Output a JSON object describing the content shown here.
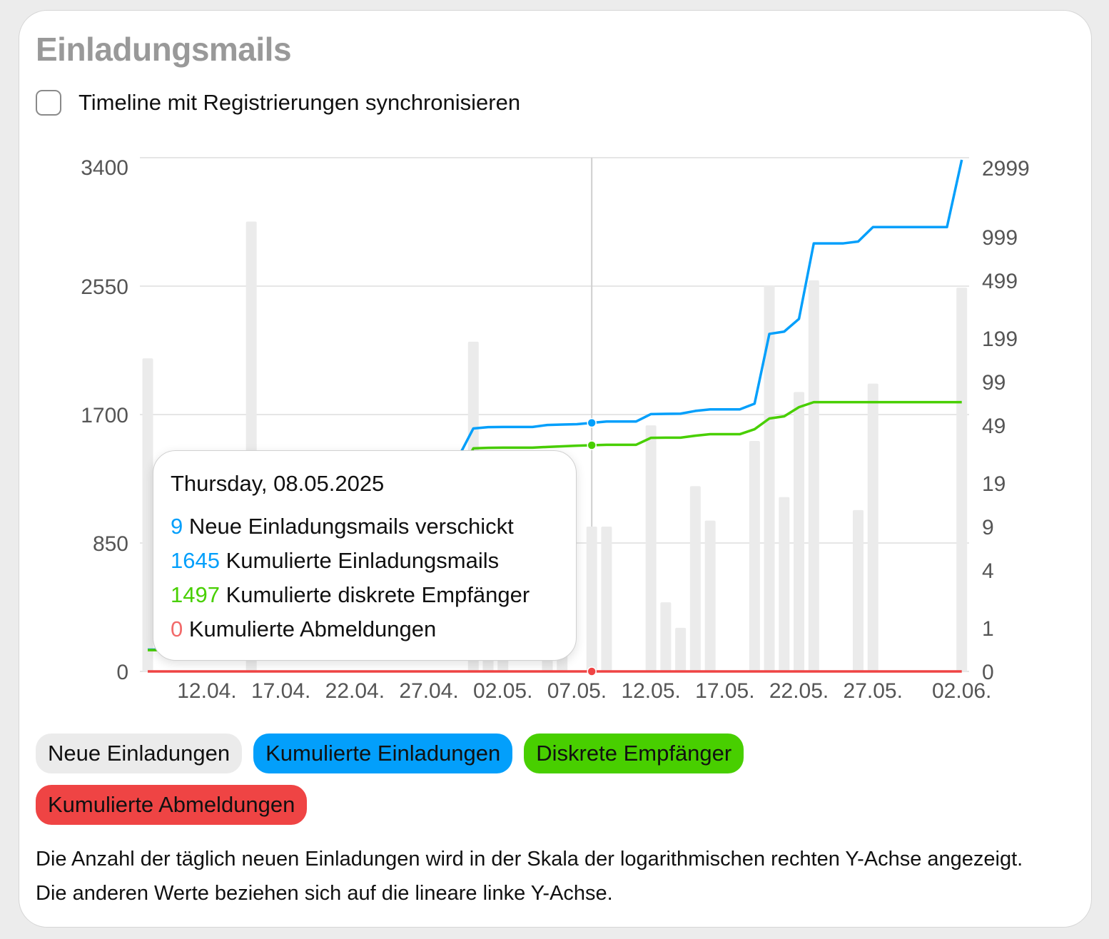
{
  "title": "Einladungsmails",
  "sync_checkbox": {
    "label": "Timeline mit Registrierungen synchronisieren",
    "checked": false
  },
  "colors": {
    "new": "#ebebeb",
    "cumulative": "#039ffb",
    "recipients": "#48cf00",
    "unsubscribes": "#ef4444",
    "title": "#999999"
  },
  "chart_data": {
    "type": "bar+line",
    "x_dates": [
      "08.04.",
      "09.04.",
      "10.04.",
      "11.04.",
      "12.04.",
      "13.04.",
      "14.04.",
      "15.04.",
      "16.04.",
      "17.04.",
      "18.04.",
      "19.04.",
      "20.04.",
      "21.04.",
      "22.04.",
      "23.04.",
      "24.04.",
      "25.04.",
      "26.04.",
      "27.04.",
      "28.04.",
      "29.04.",
      "30.04.",
      "01.05.",
      "02.05.",
      "03.05.",
      "04.05.",
      "05.05.",
      "06.05.",
      "07.05.",
      "08.05.",
      "09.05.",
      "10.05.",
      "11.05.",
      "12.05.",
      "13.05.",
      "14.05.",
      "15.05.",
      "16.05.",
      "17.05.",
      "18.05.",
      "19.05.",
      "20.05.",
      "21.05.",
      "22.05.",
      "23.05.",
      "24.05.",
      "25.05.",
      "26.05.",
      "27.05.",
      "28.05.",
      "29.05.",
      "30.05.",
      "31.05.",
      "01.06.",
      "02.06."
    ],
    "x_tick_labels": [
      "12.04.",
      "17.04.",
      "22.04.",
      "27.04.",
      "02.05.",
      "07.05.",
      "12.05.",
      "17.05.",
      "22.05.",
      "27.05.",
      "02.06."
    ],
    "x_tick_indices": [
      4,
      9,
      14,
      19,
      24,
      29,
      34,
      39,
      44,
      49,
      55
    ],
    "left_axis": {
      "scale": "linear",
      "range": [
        0,
        3400
      ],
      "ticks": [
        0,
        850,
        1700,
        2550,
        3400
      ]
    },
    "right_axis": {
      "scale": "log",
      "range": [
        0,
        2999
      ],
      "ticks": [
        0,
        1,
        4,
        9,
        19,
        49,
        99,
        199,
        499,
        999,
        2999
      ]
    },
    "grid": true,
    "series": [
      {
        "name": "Neue Einladungen",
        "type": "bar",
        "axis": "right",
        "values": [
          144,
          0,
          0,
          0,
          0,
          0,
          0,
          1276,
          0,
          0,
          0,
          0,
          0,
          0,
          0,
          0,
          0,
          0,
          0,
          0,
          0,
          0,
          188,
          9,
          1,
          0,
          0,
          13,
          3,
          0,
          9,
          9,
          0,
          0,
          49,
          2,
          1,
          18,
          10,
          0,
          0,
          38,
          462,
          15,
          84,
          500,
          0,
          0,
          12,
          96,
          0,
          0,
          0,
          0,
          0,
          445
        ]
      },
      {
        "name": "Kumulierte Einladungen",
        "type": "line",
        "axis": "left",
        "values": [
          144,
          144,
          144,
          144,
          144,
          144,
          144,
          1420,
          1420,
          1420,
          1420,
          1420,
          1420,
          1420,
          1420,
          1420,
          1420,
          1420,
          1420,
          1420,
          1420,
          1420,
          1608,
          1617,
          1618,
          1618,
          1618,
          1631,
          1634,
          1636,
          1645,
          1654,
          1654,
          1654,
          1703,
          1705,
          1706,
          1724,
          1734,
          1734,
          1734,
          1772,
          2234,
          2249,
          2333,
          2833,
          2833,
          2833,
          2845,
          2941,
          2941,
          2941,
          2941,
          2941,
          2941,
          3386
        ]
      },
      {
        "name": "Diskrete Empfänger",
        "type": "line",
        "axis": "left",
        "values": [
          141,
          141,
          141,
          141,
          141,
          141,
          141,
          1290,
          1290,
          1290,
          1290,
          1290,
          1290,
          1290,
          1290,
          1290,
          1290,
          1290,
          1290,
          1290,
          1290,
          1290,
          1476,
          1480,
          1481,
          1481,
          1481,
          1486,
          1490,
          1494,
          1497,
          1500,
          1500,
          1500,
          1546,
          1547,
          1547,
          1560,
          1570,
          1570,
          1570,
          1603,
          1674,
          1688,
          1749,
          1782,
          1782,
          1782,
          1782,
          1782,
          1782,
          1782,
          1782,
          1782,
          1782,
          1782
        ]
      },
      {
        "name": "Kumulierte Abmeldungen",
        "type": "line",
        "axis": "left",
        "values": [
          0,
          0,
          0,
          0,
          0,
          0,
          0,
          0,
          0,
          0,
          0,
          0,
          0,
          0,
          0,
          0,
          0,
          0,
          0,
          0,
          0,
          0,
          0,
          0,
          0,
          0,
          0,
          0,
          0,
          0,
          0,
          0,
          0,
          0,
          0,
          0,
          0,
          0,
          0,
          0,
          0,
          0,
          0,
          0,
          0,
          0,
          0,
          0,
          0,
          0,
          0,
          0,
          0,
          0,
          0,
          0
        ]
      }
    ],
    "hover_index": 30
  },
  "tooltip": {
    "date": "Thursday, 08.05.2025",
    "rows": [
      {
        "value": "9",
        "label": "Neue Einladungsmails verschickt"
      },
      {
        "value": "1645",
        "label": "Kumulierte Einladungsmails"
      },
      {
        "value": "1497",
        "label": "Kumulierte diskrete Empfänger"
      },
      {
        "value": "0",
        "label": "Kumulierte Abmeldungen"
      }
    ]
  },
  "legend": [
    "Neue Einladungen",
    "Kumulierte Einladungen",
    "Diskrete Empfänger",
    "Kumulierte Abmeldungen"
  ],
  "description": "Die Anzahl der täglich neuen Einladungen wird in der Skala der logarithmischen rechten Y-Achse angezeigt. Die anderen Werte beziehen sich auf die lineare linke Y-Achse."
}
